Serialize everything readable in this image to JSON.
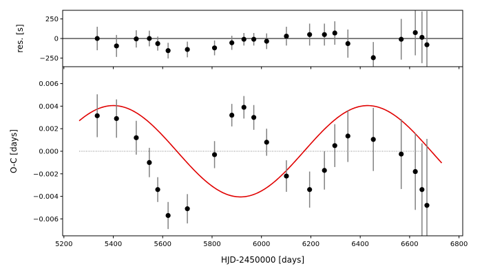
{
  "chart_data": [
    {
      "type": "scatter",
      "panel": "residuals",
      "ylabel": "res. [s]",
      "xlim": [
        5195,
        6815
      ],
      "ylim": [
        -360,
        360
      ],
      "xticks": [
        5200,
        5400,
        5600,
        5800,
        6000,
        6200,
        6400,
        6600,
        6800
      ],
      "yticks": [
        -250,
        0,
        250
      ],
      "ytick_labels": [
        "−250",
        "0",
        "250"
      ],
      "zero_line": true,
      "marker_color": "#000000",
      "errorbar_color": "#808080",
      "zero_line_color": "#000000",
      "points": [
        {
          "x": 5335,
          "y": 0,
          "err": 150
        },
        {
          "x": 5413,
          "y": -95,
          "err": 140
        },
        {
          "x": 5493,
          "y": -5,
          "err": 110
        },
        {
          "x": 5546,
          "y": 0,
          "err": 100
        },
        {
          "x": 5580,
          "y": -65,
          "err": 90
        },
        {
          "x": 5622,
          "y": -155,
          "err": 100
        },
        {
          "x": 5700,
          "y": -140,
          "err": 100
        },
        {
          "x": 5810,
          "y": -120,
          "err": 95
        },
        {
          "x": 5880,
          "y": -55,
          "err": 90
        },
        {
          "x": 5929,
          "y": -10,
          "err": 80
        },
        {
          "x": 5969,
          "y": -10,
          "err": 80
        },
        {
          "x": 6021,
          "y": -35,
          "err": 100
        },
        {
          "x": 6101,
          "y": 30,
          "err": 120
        },
        {
          "x": 6195,
          "y": 50,
          "err": 140
        },
        {
          "x": 6255,
          "y": 50,
          "err": 140
        },
        {
          "x": 6297,
          "y": 70,
          "err": 150
        },
        {
          "x": 6350,
          "y": -65,
          "err": 180
        },
        {
          "x": 6453,
          "y": -245,
          "err": 200
        },
        {
          "x": 6566,
          "y": -10,
          "err": 260
        },
        {
          "x": 6623,
          "y": 75,
          "err": 290
        },
        {
          "x": 6650,
          "y": 15,
          "err": 330
        },
        {
          "x": 6670,
          "y": -80,
          "err": 430
        }
      ]
    },
    {
      "type": "scatter",
      "panel": "oc",
      "ylabel": "O-C [days]",
      "xlabel": "HJD-2450000 [days]",
      "xlim": [
        5195,
        6815
      ],
      "ylim": [
        -0.0075,
        0.0075
      ],
      "xticks": [
        5200,
        5400,
        5600,
        5800,
        6000,
        6200,
        6400,
        6600,
        6800
      ],
      "xtick_labels": [
        "5200",
        "5400",
        "5600",
        "5800",
        "6000",
        "6200",
        "6400",
        "6600",
        "6800"
      ],
      "yticks": [
        -0.006,
        -0.004,
        -0.002,
        0.0,
        0.002,
        0.004,
        0.006
      ],
      "ytick_labels": [
        "−0.006",
        "−0.004",
        "−0.002",
        "0.000",
        "0.002",
        "0.004",
        "0.006"
      ],
      "marker_color": "#000000",
      "errorbar_color": "#808080",
      "zero_line_color": "#000000",
      "model": {
        "type": "sine",
        "amplitude": 0.00405,
        "period": 1030,
        "peak_x": 5400,
        "x_range": [
          5262,
          6730
        ],
        "color": "#e00000"
      },
      "points": [
        {
          "x": 5335,
          "y": 0.00315,
          "err": 0.0019
        },
        {
          "x": 5413,
          "y": 0.0029,
          "err": 0.0017
        },
        {
          "x": 5493,
          "y": 0.0012,
          "err": 0.0015
        },
        {
          "x": 5546,
          "y": -0.001,
          "err": 0.0013
        },
        {
          "x": 5580,
          "y": -0.0034,
          "err": 0.0011
        },
        {
          "x": 5622,
          "y": -0.0057,
          "err": 0.0012
        },
        {
          "x": 5700,
          "y": -0.0051,
          "err": 0.0013
        },
        {
          "x": 5810,
          "y": -0.0003,
          "err": 0.0012
        },
        {
          "x": 5880,
          "y": 0.0032,
          "err": 0.001
        },
        {
          "x": 5929,
          "y": 0.0039,
          "err": 0.001
        },
        {
          "x": 5969,
          "y": 0.003,
          "err": 0.0011
        },
        {
          "x": 6021,
          "y": 0.0008,
          "err": 0.0012
        },
        {
          "x": 6101,
          "y": -0.0022,
          "err": 0.0014
        },
        {
          "x": 6195,
          "y": -0.0034,
          "err": 0.0016
        },
        {
          "x": 6255,
          "y": -0.0017,
          "err": 0.0017
        },
        {
          "x": 6297,
          "y": 0.0005,
          "err": 0.0019
        },
        {
          "x": 6350,
          "y": 0.00135,
          "err": 0.0023
        },
        {
          "x": 6453,
          "y": 0.00105,
          "err": 0.0028
        },
        {
          "x": 6566,
          "y": -0.00025,
          "err": 0.0031
        },
        {
          "x": 6623,
          "y": -0.0018,
          "err": 0.0034
        },
        {
          "x": 6650,
          "y": -0.0034,
          "err": 0.0041
        },
        {
          "x": 6670,
          "y": -0.0048,
          "err": 0.0059
        }
      ]
    }
  ]
}
